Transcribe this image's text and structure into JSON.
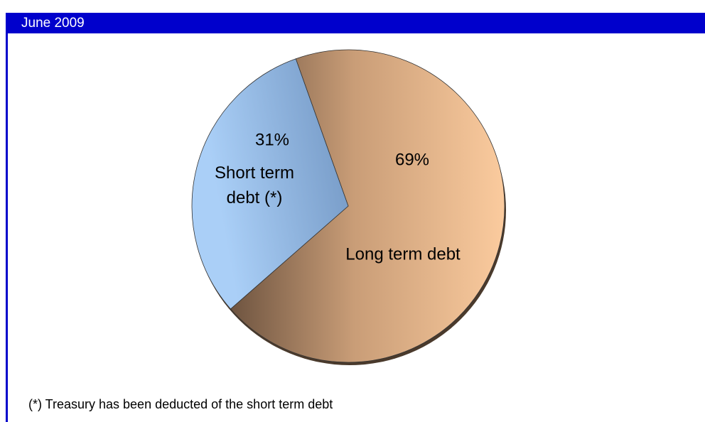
{
  "chart_data": {
    "type": "pie",
    "title": "June 2009",
    "categories": [
      "Long term debt",
      "Short term debt (*)"
    ],
    "values": [
      69,
      31
    ],
    "value_labels": [
      "69%",
      "31%"
    ],
    "colors": [
      "#f9c99b",
      "#a6c8f0"
    ],
    "annotation": "(*) Treasury has been deducted of the short term debt"
  }
}
